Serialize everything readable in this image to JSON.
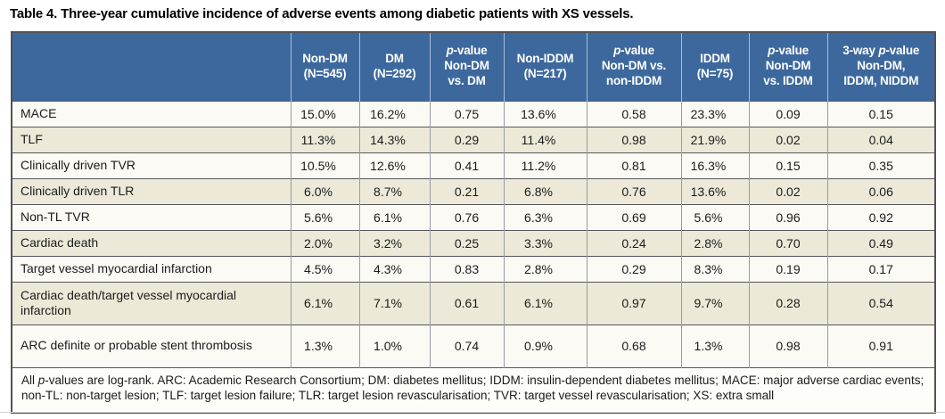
{
  "table": {
    "title": "Table 4. Three-year cumulative incidence of adverse events among diabetic patients with XS vessels.",
    "headers": [
      "",
      "Non-DM\n(N=545)",
      "DM\n(N=292)",
      "p-value\nNon-DM\nvs. DM",
      "Non-IDDM\n(N=217)",
      "p-value\nNon-DM vs.\nnon-IDDM",
      "IDDM\n(N=75)",
      "p-value\nNon-DM\nvs. IDDM",
      "3-way p-value\nNon-DM,\nIDDM, NIDDM"
    ],
    "column_keys": [
      "non-dm",
      "dm",
      "p-non-dm-vs-dm",
      "non-iddm",
      "p-non-dm-vs-non-iddm",
      "iddm",
      "p-non-dm-vs-iddm",
      "p-3-way"
    ],
    "value_types": [
      "pct",
      "pct",
      "pval",
      "pct",
      "pval",
      "pct",
      "pval",
      "pval"
    ],
    "rows": [
      {
        "label": "MACE",
        "values": [
          "15.0%",
          "16.2%",
          "0.75",
          "13.6%",
          "0.58",
          "23.3%",
          "0.09",
          "0.15"
        ]
      },
      {
        "label": "TLF",
        "values": [
          "11.3%",
          "14.3%",
          "0.29",
          "11.4%",
          "0.98",
          "21.9%",
          "0.02",
          "0.04"
        ]
      },
      {
        "label": "Clinically driven TVR",
        "values": [
          "10.5%",
          "12.6%",
          "0.41",
          "11.2%",
          "0.81",
          "16.3%",
          "0.15",
          "0.35"
        ]
      },
      {
        "label": "Clinically driven TLR",
        "values": [
          "6.0%",
          "8.7%",
          "0.21",
          "6.8%",
          "0.76",
          "13.6%",
          "0.02",
          "0.06"
        ]
      },
      {
        "label": "Non-TL TVR",
        "values": [
          "5.6%",
          "6.1%",
          "0.76",
          "6.3%",
          "0.69",
          "5.6%",
          "0.96",
          "0.92"
        ]
      },
      {
        "label": "Cardiac death",
        "values": [
          "2.0%",
          "3.2%",
          "0.25",
          "3.3%",
          "0.24",
          "2.8%",
          "0.70",
          "0.49"
        ]
      },
      {
        "label": "Target vessel myocardial infarction",
        "values": [
          "4.5%",
          "4.3%",
          "0.83",
          "2.8%",
          "0.29",
          "8.3%",
          "0.19",
          "0.17"
        ]
      },
      {
        "label": "Cardiac death/target vessel myocardial infarction",
        "values": [
          "6.1%",
          "7.1%",
          "0.61",
          "6.1%",
          "0.97",
          "9.7%",
          "0.28",
          "0.54"
        ]
      },
      {
        "label": "ARC definite or probable stent thrombosis",
        "values": [
          "1.3%",
          "1.0%",
          "0.74",
          "0.9%",
          "0.68",
          "1.3%",
          "0.98",
          "0.91"
        ]
      }
    ],
    "footnote": "All p-values are log-rank. ARC: Academic Research Consortium; DM: diabetes mellitus; IDDM: insulin-dependent diabetes mellitus; MACE: major adverse cardiac events; non-TL: non-target lesion; TLF: target lesion failure; TLR: target lesion revascularisation; TVR: target vessel revascularisation; XS: extra small",
    "colors": {
      "header_bg": "#3c689d",
      "header_text": "#ffffff",
      "row_odd_bg": "#fbfaf5",
      "row_even_bg": "#ece9d8",
      "border_dark": "#55565a",
      "border_light": "#989ca1"
    }
  }
}
